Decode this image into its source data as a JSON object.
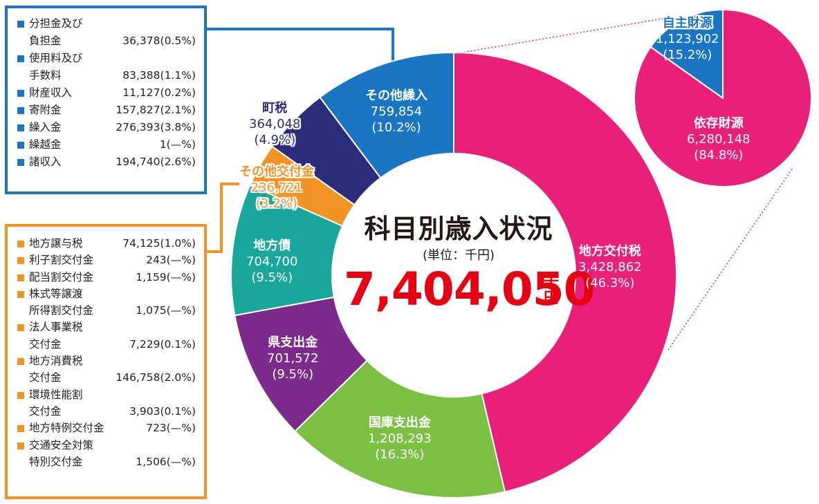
{
  "colors": {
    "chihou_koufuzei": "#e8207a",
    "kokko": "#7bc043",
    "kenshishutsu": "#7c2b8c",
    "chihousai": "#1aa79b",
    "sonota_koufukin": "#f39325",
    "chouzei": "#2b2d7c",
    "sonota_kurinyu": "#1a76c4",
    "jishu": "#1a76c4",
    "izon": "#e8207a",
    "blue_box": "#1a76c4",
    "orange_box": "#f39325",
    "total_red": "#e60012"
  },
  "center": {
    "title": "科目別歳入状況",
    "unit": "(単位：千円)",
    "total": "7,404,050",
    "total_unit_1": "千",
    "total_unit_2": "円"
  },
  "blue_box": {
    "items": [
      {
        "name1": "分担金及び",
        "name2": "負担金",
        "value": "36,378(0.5%)"
      },
      {
        "name1": "使用料及び",
        "name2": "手数料",
        "value": "83,388(1.1%)"
      },
      {
        "name1": "財産収入",
        "value": "11,127(0.2%)"
      },
      {
        "name1": "寄附金",
        "value": "157,827(2.1%)"
      },
      {
        "name1": "繰入金",
        "value": "276,393(3.8%)"
      },
      {
        "name1": "繰越金",
        "value": "1(—%)"
      },
      {
        "name1": "諸収入",
        "value": "194,740(2.6%)"
      }
    ]
  },
  "orange_box": {
    "items": [
      {
        "name1": "地方譲与税",
        "value": "74,125(1.0%)"
      },
      {
        "name1": "利子割交付金",
        "value": "243(—%)"
      },
      {
        "name1": "配当割交付金",
        "value": "1,159(—%)"
      },
      {
        "name1": "株式等譲渡",
        "name2": "所得割交付金",
        "value": "1,075(—%)"
      },
      {
        "name1": "法人事業税",
        "name2": "交付金",
        "value": "7,229(0.1%)"
      },
      {
        "name1": "地方消費税",
        "name2": "交付金",
        "value": "146,758(2.0%)"
      },
      {
        "name1": "環境性能割",
        "name2": "交付金",
        "value": "3,903(0.1%)"
      },
      {
        "name1": "地方特例交付金",
        "value": "723(—%)"
      },
      {
        "name1": "交通安全対策",
        "name2": "特別交付金",
        "value": "1,506(—%)"
      }
    ]
  },
  "chart_data": [
    {
      "type": "pie",
      "subtype": "donut",
      "title": "科目別歳入状況",
      "unit": "千円",
      "total": 7404050,
      "slices": [
        {
          "label": "地方交付税",
          "value": 3428862,
          "percent": 46.3,
          "value_text": "3,428,862",
          "percent_text": "(46.3%)"
        },
        {
          "label": "国庫支出金",
          "value": 1208293,
          "percent": 16.3,
          "value_text": "1,208,293",
          "percent_text": "(16.3%)"
        },
        {
          "label": "県支出金",
          "value": 701572,
          "percent": 9.5,
          "value_text": "701,572",
          "percent_text": "(9.5%)"
        },
        {
          "label": "地方債",
          "value": 704700,
          "percent": 9.5,
          "value_text": "704,700",
          "percent_text": "(9.5%)"
        },
        {
          "label": "その他交付金",
          "value": 236721,
          "percent": 3.2,
          "value_text": "236,721",
          "percent_text": "(3.2%)"
        },
        {
          "label": "町税",
          "value": 364048,
          "percent": 4.9,
          "value_text": "364,048",
          "percent_text": "(4.9%)"
        },
        {
          "label": "その他繰入",
          "value": 759854,
          "percent": 10.2,
          "value_text": "759,854",
          "percent_text": "(10.2%)"
        }
      ]
    },
    {
      "type": "pie",
      "slices": [
        {
          "label": "自主財源",
          "value": 1123902,
          "percent": 15.2,
          "value_text": "1,123,902",
          "percent_text": "(15.2%)"
        },
        {
          "label": "依存財源",
          "value": 6280148,
          "percent": 84.8,
          "value_text": "6,280,148",
          "percent_text": "(84.8%)"
        }
      ]
    }
  ]
}
